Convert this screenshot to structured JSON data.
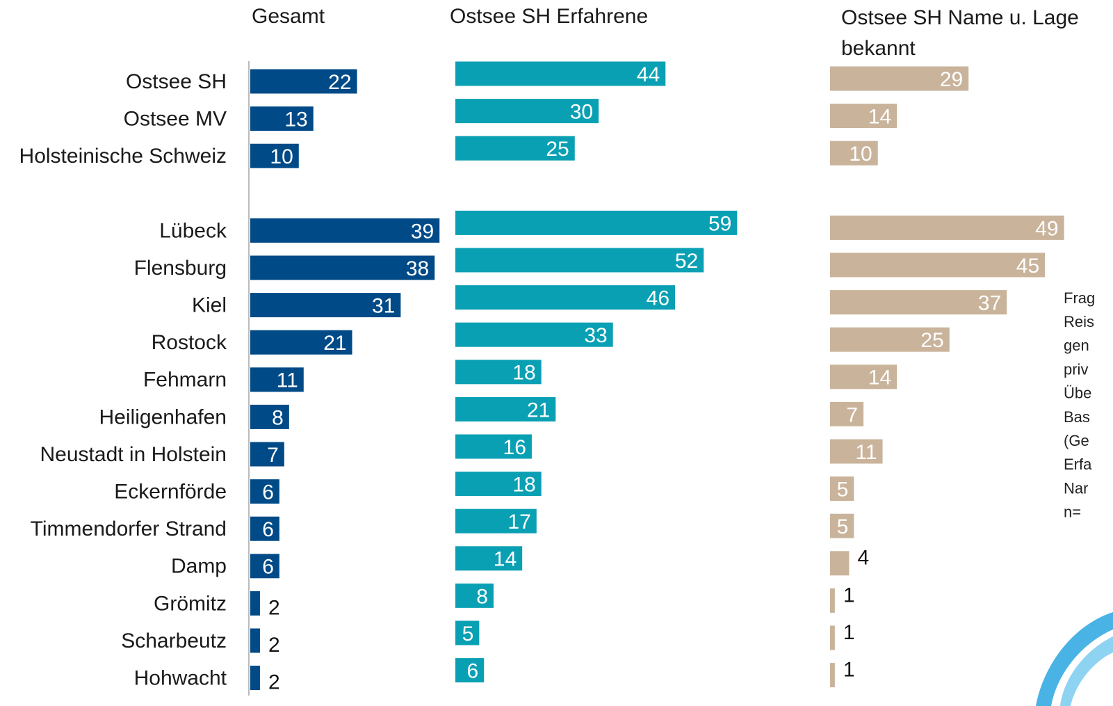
{
  "chart_data": [
    {
      "type": "bar",
      "title": "Gesamt",
      "color": "#004a87",
      "categories": [
        "Ostsee SH",
        "Ostsee MV",
        "Holsteinische Schweiz",
        null,
        "Lübeck",
        "Flensburg",
        "Kiel",
        "Rostock",
        "Fehmarn",
        "Heiligenhafen",
        "Neustadt in Holstein",
        "Eckernförde",
        "Timmendorfer Strand",
        "Damp",
        "Grömitz",
        "Scharbeutz",
        "Hohwacht"
      ],
      "values": [
        22,
        13,
        10,
        null,
        39,
        38,
        31,
        21,
        11,
        8,
        7,
        6,
        6,
        6,
        2,
        2,
        2
      ]
    },
    {
      "type": "bar",
      "title": "Ostsee SH Erfahrene",
      "color": "#0aa0b4",
      "values": [
        44,
        30,
        25,
        null,
        59,
        52,
        46,
        33,
        18,
        21,
        16,
        18,
        17,
        14,
        8,
        5,
        6
      ]
    },
    {
      "type": "bar",
      "title": "Ostsee SH Name u. Lage bekannt",
      "color": "#c9b39b",
      "values": [
        29,
        14,
        10,
        null,
        49,
        45,
        37,
        25,
        14,
        7,
        11,
        5,
        5,
        4,
        1,
        1,
        1
      ],
      "note": [
        "Frag",
        "Reis",
        "gen",
        "priv",
        "Übe",
        "Bas",
        "(Ge",
        "Erfa",
        "Nar",
        "n="
      ]
    }
  ]
}
